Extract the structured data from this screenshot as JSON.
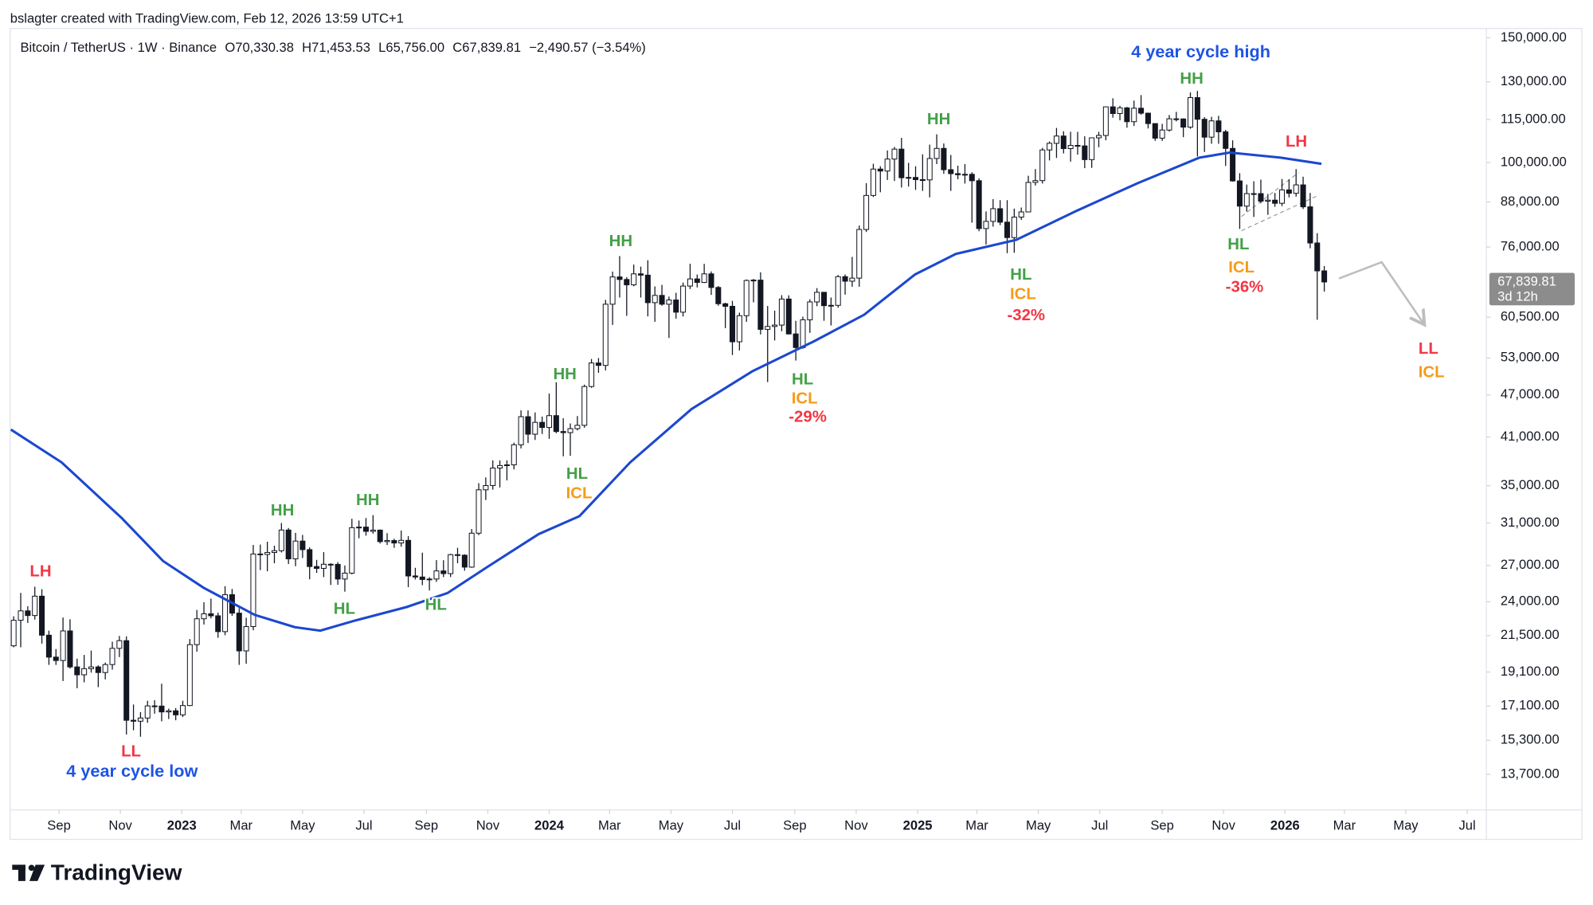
{
  "header": {
    "credit": "bslagter created with TradingView.com, Feb 12, 2026 13:59 UTC+1",
    "symbol": "Bitcoin / TetherUS · 1W · Binance",
    "ohlc": [
      "O70,330.38",
      "H71,453.53",
      "L65,756.00",
      "C67,839.81",
      "−2,490.57 (−3.54%)"
    ]
  },
  "chart_data": {
    "type": "candlestick",
    "log_scale": true,
    "up_color": "#ffffff",
    "down_color": "#131722",
    "wick_color": "#131722",
    "candles": {
      "open": [
        20800,
        22600,
        23300,
        22950,
        24440,
        21530,
        20050,
        19830,
        21830,
        19420,
        18930,
        19310,
        19420,
        19070,
        19570,
        20630,
        21150,
        16330,
        16280,
        16450,
        17110,
        17100,
        16780,
        16840,
        16620,
        17130,
        20880,
        22710,
        23080,
        22930,
        21780,
        24560,
        23130,
        20460,
        22140,
        28030,
        27990,
        28170,
        28330,
        30300,
        27590,
        29230,
        28430,
        26910,
        26750,
        27110,
        27100,
        25840,
        26340,
        30530,
        30590,
        30170,
        30290,
        29180,
        29280,
        29050,
        29300,
        26100,
        26010,
        25800,
        25840,
        26530,
        26300,
        27970,
        27920,
        26860,
        29990,
        34530,
        35010,
        37060,
        37360,
        37450,
        39970,
        43790,
        41370,
        42990,
        42280,
        43940,
        41730,
        41580,
        42120,
        42580,
        48300,
        52140,
        51730,
        63110,
        68960,
        68390,
        67210,
        69650,
        69360,
        63430,
        64940,
        63110,
        63980,
        61500,
        66940,
        68510,
        67740,
        69650,
        66640,
        63210,
        62680,
        55860,
        60800,
        68170,
        68250,
        58160,
        58710,
        58970,
        64180,
        57300,
        54820,
        59990,
        63580,
        65600,
        62820,
        62880,
        69020,
        68010,
        68690,
        80450,
        89860,
        97900,
        97280,
        101140,
        104460,
        95190,
        95280,
        94600,
        94520,
        101330,
        104700,
        97700,
        96460,
        96120,
        96250,
        94270,
        80700,
        82600,
        86080,
        82390,
        78370,
        83760,
        85180,
        93750,
        94300,
        104180,
        106450,
        109000,
        104640,
        105730,
        105550,
        100960,
        108370,
        109200,
        119840,
        117270,
        119450,
        114200,
        119300,
        117400,
        113500,
        108250,
        111140,
        115270,
        115230,
        112200,
        123500,
        115100,
        108600,
        114500,
        110500,
        104700,
        94200,
        86800,
        90400,
        90400,
        88200,
        88500,
        87600,
        91500,
        90500,
        93000,
        86600,
        77000,
        70330.38
      ],
      "high": [
        22900,
        24700,
        23650,
        25200,
        25000,
        21850,
        20580,
        22800,
        22670,
        19950,
        20190,
        20480,
        19520,
        19700,
        21080,
        21480,
        21450,
        17190,
        16770,
        17400,
        17430,
        18390,
        16960,
        16990,
        17400,
        21260,
        23370,
        23960,
        24250,
        23170,
        25250,
        25020,
        23500,
        22790,
        28870,
        28900,
        29170,
        28800,
        31000,
        30500,
        30020,
        29820,
        28640,
        27500,
        28200,
        27200,
        27300,
        27000,
        31430,
        31250,
        31500,
        31800,
        30350,
        29990,
        29450,
        30250,
        29700,
        26800,
        28150,
        26000,
        27480,
        27470,
        28050,
        28600,
        28000,
        30400,
        35280,
        35950,
        38000,
        37980,
        38000,
        40250,
        44700,
        44700,
        44400,
        43800,
        47200,
        48970,
        43580,
        42840,
        43880,
        48600,
        52820,
        52980,
        64000,
        70170,
        73800,
        68900,
        71770,
        71300,
        72800,
        66870,
        67200,
        64700,
        65500,
        67700,
        71980,
        69500,
        71950,
        70200,
        66950,
        63400,
        63800,
        61400,
        68400,
        68500,
        70000,
        62750,
        61800,
        65000,
        64960,
        59800,
        60600,
        64130,
        66500,
        65600,
        64500,
        69400,
        69500,
        73600,
        81500,
        93500,
        99600,
        98800,
        104000,
        105200,
        108350,
        99900,
        98800,
        102700,
        106000,
        109600,
        106400,
        102500,
        99000,
        99500,
        96900,
        95000,
        85300,
        88800,
        88500,
        88500,
        86100,
        86400,
        95800,
        97900,
        104900,
        107100,
        111900,
        110700,
        110500,
        110500,
        108900,
        108500,
        110500,
        119900,
        123200,
        120250,
        119800,
        122300,
        124500,
        117600,
        113500,
        113400,
        116700,
        117900,
        115400,
        125600,
        126200,
        115900,
        116000,
        116400,
        111200,
        107500,
        96600,
        93100,
        94100,
        94600,
        90300,
        90600,
        94800,
        94700,
        97900,
        95500,
        90600,
        79500,
        71453.53
      ],
      "low": [
        20700,
        20700,
        22400,
        22650,
        20950,
        19550,
        19550,
        18550,
        19320,
        18120,
        18470,
        19060,
        18190,
        18650,
        19250,
        20050,
        15590,
        15810,
        15480,
        16200,
        16680,
        16270,
        16400,
        16330,
        16500,
        17100,
        20410,
        22290,
        22740,
        21350,
        21530,
        22920,
        19550,
        19620,
        21880,
        26600,
        26500,
        27200,
        28170,
        27130,
        26940,
        27670,
        25820,
        26360,
        26000,
        25350,
        25360,
        24800,
        26240,
        29500,
        29750,
        29950,
        29000,
        28860,
        28600,
        28700,
        25170,
        25800,
        25330,
        24900,
        25600,
        26000,
        26010,
        27200,
        26550,
        26800,
        29800,
        33400,
        34550,
        34800,
        35600,
        36900,
        39500,
        40200,
        40600,
        41400,
        40750,
        41500,
        38500,
        38560,
        41880,
        42250,
        48100,
        50500,
        50900,
        59000,
        64500,
        60770,
        66900,
        64500,
        60660,
        59600,
        62800,
        56550,
        60200,
        60650,
        66300,
        66650,
        67600,
        65050,
        62800,
        58400,
        53500,
        54300,
        59600,
        63500,
        57200,
        49000,
        56100,
        57800,
        57200,
        52550,
        54600,
        57500,
        62700,
        59800,
        58900,
        62400,
        65100,
        66800,
        66800,
        79800,
        89400,
        90800,
        94500,
        94200,
        92200,
        92500,
        91500,
        91200,
        89300,
        99500,
        96400,
        91200,
        94700,
        93400,
        82250,
        80000,
        76600,
        81200,
        81600,
        74500,
        74600,
        83000,
        85100,
        92800,
        93400,
        100700,
        101500,
        103000,
        100300,
        102600,
        98200,
        98300,
        105100,
        107500,
        115700,
        114700,
        112000,
        112600,
        116800,
        111700,
        107300,
        107270,
        110600,
        114300,
        108600,
        111600,
        102000,
        103500,
        106300,
        106300,
        98900,
        94000,
        80600,
        85300,
        83800,
        87600,
        84400,
        86600,
        86800,
        89300,
        89500,
        86000,
        75700,
        60000,
        65756
      ],
      "close": [
        22600,
        23300,
        22950,
        24440,
        21530,
        20050,
        19830,
        21830,
        19420,
        18930,
        19310,
        19420,
        19070,
        19570,
        20630,
        21150,
        16330,
        16280,
        16450,
        17110,
        17100,
        16780,
        16840,
        16620,
        17130,
        20880,
        22710,
        23080,
        22930,
        21780,
        24560,
        23130,
        20460,
        22140,
        28030,
        27990,
        28170,
        28330,
        30300,
        27590,
        29230,
        28430,
        26910,
        26750,
        27110,
        27100,
        25840,
        26340,
        30530,
        30590,
        30170,
        30290,
        29180,
        29280,
        29050,
        29300,
        26100,
        26010,
        25800,
        25840,
        26530,
        26300,
        27970,
        27920,
        26860,
        29990,
        34530,
        35010,
        37060,
        37360,
        37450,
        39970,
        43790,
        41370,
        42990,
        42280,
        43940,
        41730,
        41580,
        42120,
        42580,
        48300,
        52140,
        51730,
        63110,
        68960,
        68390,
        67210,
        69650,
        69360,
        63430,
        64940,
        63110,
        63980,
        61500,
        66940,
        68510,
        67740,
        69650,
        66640,
        63210,
        62680,
        55860,
        60800,
        68170,
        68250,
        58160,
        58710,
        58970,
        64180,
        57300,
        54820,
        59990,
        63580,
        65600,
        62820,
        62880,
        69020,
        68010,
        68690,
        80450,
        89860,
        97900,
        97280,
        101140,
        104460,
        95190,
        95280,
        94600,
        94520,
        101330,
        104700,
        97700,
        96460,
        96120,
        96250,
        94270,
        80700,
        82600,
        86080,
        82390,
        78370,
        83760,
        85180,
        93750,
        94300,
        104180,
        106450,
        109000,
        104640,
        105730,
        105550,
        100960,
        108370,
        109200,
        119840,
        117270,
        119450,
        114200,
        119300,
        117400,
        113500,
        108250,
        111140,
        115270,
        115230,
        112200,
        123500,
        115100,
        108600,
        114500,
        110500,
        104700,
        94200,
        86800,
        90400,
        90400,
        88200,
        88500,
        87600,
        91500,
        90500,
        93000,
        86600,
        77000,
        70330.38,
        67839.81
      ]
    },
    "ma": {
      "color": "#1c47cf",
      "x": [
        -0.4,
        6.8,
        15.4,
        21.2,
        27,
        34.2,
        39.9,
        43.5,
        48.6,
        55.8,
        61.6,
        67.3,
        74.5,
        80.3,
        87.5,
        96.2,
        104.9,
        113.5,
        120.7,
        127.9,
        133.7,
        142.3,
        151,
        159.6,
        168.3,
        172.6,
        179.8,
        185.6
      ],
      "values": [
        42000,
        37750,
        31450,
        27400,
        25100,
        23000,
        22100,
        21850,
        22600,
        23600,
        24700,
        26900,
        29900,
        31700,
        37750,
        44900,
        50800,
        55900,
        61000,
        69500,
        74300,
        77800,
        85600,
        93600,
        101600,
        103300,
        101600,
        99600
      ]
    },
    "xlim": [
      -0.5,
      209
    ],
    "xticks": [
      {
        "value": 6.43,
        "label": "Sep"
      },
      {
        "value": 15.14,
        "label": "Nov"
      },
      {
        "value": 23.86,
        "label": "2023"
      },
      {
        "value": 32.29,
        "label": "Mar"
      },
      {
        "value": 41.0,
        "label": "May"
      },
      {
        "value": 49.71,
        "label": "Jul"
      },
      {
        "value": 58.57,
        "label": "Sep"
      },
      {
        "value": 67.29,
        "label": "Nov"
      },
      {
        "value": 76.0,
        "label": "2024"
      },
      {
        "value": 84.57,
        "label": "Mar"
      },
      {
        "value": 93.29,
        "label": "May"
      },
      {
        "value": 102.0,
        "label": "Jul"
      },
      {
        "value": 110.86,
        "label": "Sep"
      },
      {
        "value": 119.57,
        "label": "Nov"
      },
      {
        "value": 128.29,
        "label": "2025"
      },
      {
        "value": 136.71,
        "label": "Mar"
      },
      {
        "value": 145.43,
        "label": "May"
      },
      {
        "value": 154.14,
        "label": "Jul"
      },
      {
        "value": 163.0,
        "label": "Sep"
      },
      {
        "value": 171.71,
        "label": "Nov"
      },
      {
        "value": 180.43,
        "label": "2026"
      },
      {
        "value": 188.86,
        "label": "Mar"
      },
      {
        "value": 197.57,
        "label": "May"
      },
      {
        "value": 206.29,
        "label": "Jul"
      }
    ],
    "ylim": [
      12205,
      154600
    ],
    "yticks": [
      {
        "value": 150000,
        "label": "150,000.00"
      },
      {
        "value": 130000,
        "label": "130,000.00"
      },
      {
        "value": 115000,
        "label": "115,000.00"
      },
      {
        "value": 100000,
        "label": "100,000.00"
      },
      {
        "value": 88000,
        "label": "88,000.00"
      },
      {
        "value": 76000,
        "label": "76,000.00"
      },
      {
        "value": 60500,
        "label": "60,500.00"
      },
      {
        "value": 53000,
        "label": "53,000.00"
      },
      {
        "value": 47000,
        "label": "47,000.00"
      },
      {
        "value": 41000,
        "label": "41,000.00"
      },
      {
        "value": 35000,
        "label": "35,000.00"
      },
      {
        "value": 31000,
        "label": "31,000.00"
      },
      {
        "value": 27000,
        "label": "27,000.00"
      },
      {
        "value": 24000,
        "label": "24,000.00"
      },
      {
        "value": 21500,
        "label": "21,500.00"
      },
      {
        "value": 19100,
        "label": "19,100.00"
      },
      {
        "value": 17100,
        "label": "17,100.00"
      },
      {
        "value": 15300,
        "label": "15,300.00"
      },
      {
        "value": 13700,
        "label": "13,700.00"
      }
    ],
    "last_price": {
      "value": 67839.81,
      "label": "67,839.81"
    },
    "countdown": "3d 12h",
    "price_box_color": "#8c8c8c",
    "annotations": [
      {
        "text": "LH",
        "color": "#f23645"
      },
      {
        "text": "LL",
        "color": "#f23645"
      },
      {
        "text": "4 year cycle low",
        "color": "#1e53e5"
      },
      {
        "text": "HH",
        "color": "#43a047"
      },
      {
        "text": "HL",
        "color": "#43a047"
      },
      {
        "text": "HH",
        "color": "#43a047"
      },
      {
        "text": "HL",
        "color": "#43a047"
      },
      {
        "text": "HH",
        "color": "#43a047"
      },
      {
        "text": "HL",
        "color": "#43a047"
      },
      {
        "text": "ICL",
        "color": "#f59c1a"
      },
      {
        "text": "HH",
        "color": "#43a047"
      },
      {
        "text": "HL",
        "color": "#43a047"
      },
      {
        "text": "ICL",
        "color": "#f59c1a"
      },
      {
        "text": "-29%",
        "color": "#f23645"
      },
      {
        "text": "HH",
        "color": "#43a047"
      },
      {
        "text": "HL",
        "color": "#43a047"
      },
      {
        "text": "ICL",
        "color": "#f59c1a"
      },
      {
        "text": "-32%",
        "color": "#f23645"
      },
      {
        "text": "4 year cycle high",
        "color": "#1e53e5"
      },
      {
        "text": "HH",
        "color": "#43a047"
      },
      {
        "text": "HL",
        "color": "#43a047"
      },
      {
        "text": "ICL",
        "color": "#f59c1a"
      },
      {
        "text": "-36%",
        "color": "#f23645"
      },
      {
        "text": "LH",
        "color": "#f23645"
      },
      {
        "text": "LL",
        "color": "#f23645"
      },
      {
        "text": "ICL",
        "color": "#f59c1a"
      }
    ]
  },
  "footer": {
    "logo": "TradingView"
  }
}
